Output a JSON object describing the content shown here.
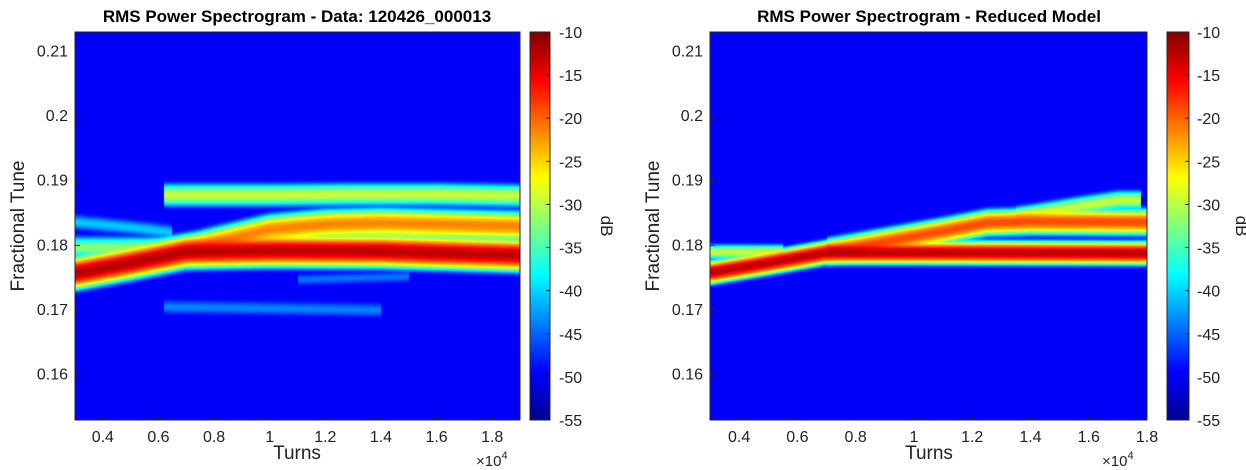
{
  "chart_data": [
    {
      "type": "heatmap",
      "title": "RMS Power Spectrogram - Data: 120426_000013",
      "xlabel": "Turns",
      "ylabel": "Fractional Tune",
      "x_multiplier_label": "×10",
      "x_multiplier_exponent": "4",
      "xlim": [
        0.3,
        1.9
      ],
      "ylim": [
        0.153,
        0.213
      ],
      "xticks": [
        0.4,
        0.6,
        0.8,
        1,
        1.2,
        1.4,
        1.6,
        1.8
      ],
      "xtick_labels": [
        "0.4",
        "0.6",
        "0.8",
        "1",
        "1.2",
        "1.4",
        "1.6",
        "1.8"
      ],
      "yticks": [
        0.16,
        0.17,
        0.18,
        0.19,
        0.2,
        0.21
      ],
      "ytick_labels": [
        "0.16",
        "0.17",
        "0.18",
        "0.19",
        "0.2",
        "0.21"
      ],
      "colorbar": {
        "label": "dB",
        "range": [
          -55,
          -10
        ],
        "ticks": [
          -55,
          -50,
          -45,
          -40,
          -35,
          -30,
          -25,
          -20,
          -15,
          -10
        ],
        "tick_labels": [
          "-55",
          "-50",
          "-45",
          "-40",
          "-35",
          "-30",
          "-25",
          "-20",
          "-15",
          "-10"
        ],
        "colormap": "jet"
      },
      "background_dB": -55,
      "ridges": [
        {
          "points": [
            [
              0.3,
              0.1757
            ],
            [
              0.5,
              0.1773
            ],
            [
              0.7,
              0.179
            ],
            [
              1.0,
              0.1792
            ],
            [
              1.4,
              0.1791
            ],
            [
              1.9,
              0.1785
            ]
          ],
          "peak_dB": -13,
          "width": 0.0007
        },
        {
          "points": [
            [
              0.3,
              0.1757
            ],
            [
              0.6,
              0.1782
            ],
            [
              0.8,
              0.1805
            ],
            [
              1.0,
              0.1825
            ],
            [
              1.2,
              0.1833
            ],
            [
              1.4,
              0.1835
            ],
            [
              1.9,
              0.183
            ]
          ],
          "peak_dB": -23,
          "width": 0.0007
        },
        {
          "points": [
            [
              0.3,
              0.1797
            ],
            [
              0.6,
              0.1797
            ],
            [
              0.9,
              0.181
            ],
            [
              1.2,
              0.1822
            ],
            [
              1.5,
              0.182
            ],
            [
              1.9,
              0.1822
            ]
          ],
          "peak_dB": -35,
          "width": 0.0006
        },
        {
          "points": [
            [
              0.62,
              0.1878
            ],
            [
              1.0,
              0.1878
            ],
            [
              1.3,
              0.1879
            ],
            [
              1.6,
              0.1879
            ],
            [
              1.9,
              0.1877
            ]
          ],
          "peak_dB": -32,
          "width": 0.0006
        },
        {
          "points": [
            [
              0.3,
              0.1836
            ],
            [
              0.5,
              0.1828
            ],
            [
              0.65,
              0.182
            ]
          ],
          "peak_dB": -45,
          "width": 0.0005
        },
        {
          "points": [
            [
              0.62,
              0.1705
            ],
            [
              1.1,
              0.1702
            ],
            [
              1.4,
              0.17
            ]
          ],
          "peak_dB": -49,
          "width": 0.0005
        },
        {
          "points": [
            [
              1.1,
              0.1747
            ],
            [
              1.5,
              0.1752
            ]
          ],
          "peak_dB": -50,
          "width": 0.0004
        }
      ]
    },
    {
      "type": "heatmap",
      "title": "RMS Power Spectrogram - Reduced Model",
      "xlabel": "Turns",
      "ylabel": "Fractional Tune",
      "x_multiplier_label": "×10",
      "x_multiplier_exponent": "4",
      "xlim": [
        0.3,
        1.8
      ],
      "ylim": [
        0.153,
        0.213
      ],
      "xticks": [
        0.4,
        0.6,
        0.8,
        1,
        1.2,
        1.4,
        1.6,
        1.8
      ],
      "xtick_labels": [
        "0.4",
        "0.6",
        "0.8",
        "1",
        "1.2",
        "1.4",
        "1.6",
        "1.8"
      ],
      "yticks": [
        0.16,
        0.17,
        0.18,
        0.19,
        0.2,
        0.21
      ],
      "ytick_labels": [
        "0.16",
        "0.17",
        "0.18",
        "0.19",
        "0.2",
        "0.21"
      ],
      "colorbar": {
        "label": "dB",
        "range": [
          -55,
          -10
        ],
        "ticks": [
          -55,
          -50,
          -45,
          -40,
          -35,
          -30,
          -25,
          -20,
          -15,
          -10
        ],
        "tick_labels": [
          "-55",
          "-50",
          "-45",
          "-40",
          "-35",
          "-30",
          "-25",
          "-20",
          "-15",
          "-10"
        ],
        "colormap": "jet"
      },
      "background_dB": -55,
      "ridges": [
        {
          "points": [
            [
              0.3,
              0.1758
            ],
            [
              0.5,
              0.1773
            ],
            [
              0.7,
              0.1789
            ],
            [
              1.0,
              0.1789
            ],
            [
              1.8,
              0.1788
            ]
          ],
          "peak_dB": -13,
          "width": 0.0005
        },
        {
          "points": [
            [
              0.3,
              0.179
            ],
            [
              0.55,
              0.179
            ]
          ],
          "peak_dB": -32,
          "width": 0.0004
        },
        {
          "points": [
            [
              0.7,
              0.179
            ],
            [
              0.9,
              0.1806
            ],
            [
              1.1,
              0.1822
            ],
            [
              1.25,
              0.1835
            ],
            [
              1.4,
              0.1837
            ],
            [
              1.8,
              0.1836
            ]
          ],
          "peak_dB": -20,
          "width": 0.0006
        },
        {
          "points": [
            [
              1.35,
              0.1845
            ],
            [
              1.55,
              0.186
            ],
            [
              1.7,
              0.187
            ],
            [
              1.78,
              0.187
            ]
          ],
          "peak_dB": -32,
          "width": 0.0005
        }
      ]
    }
  ]
}
